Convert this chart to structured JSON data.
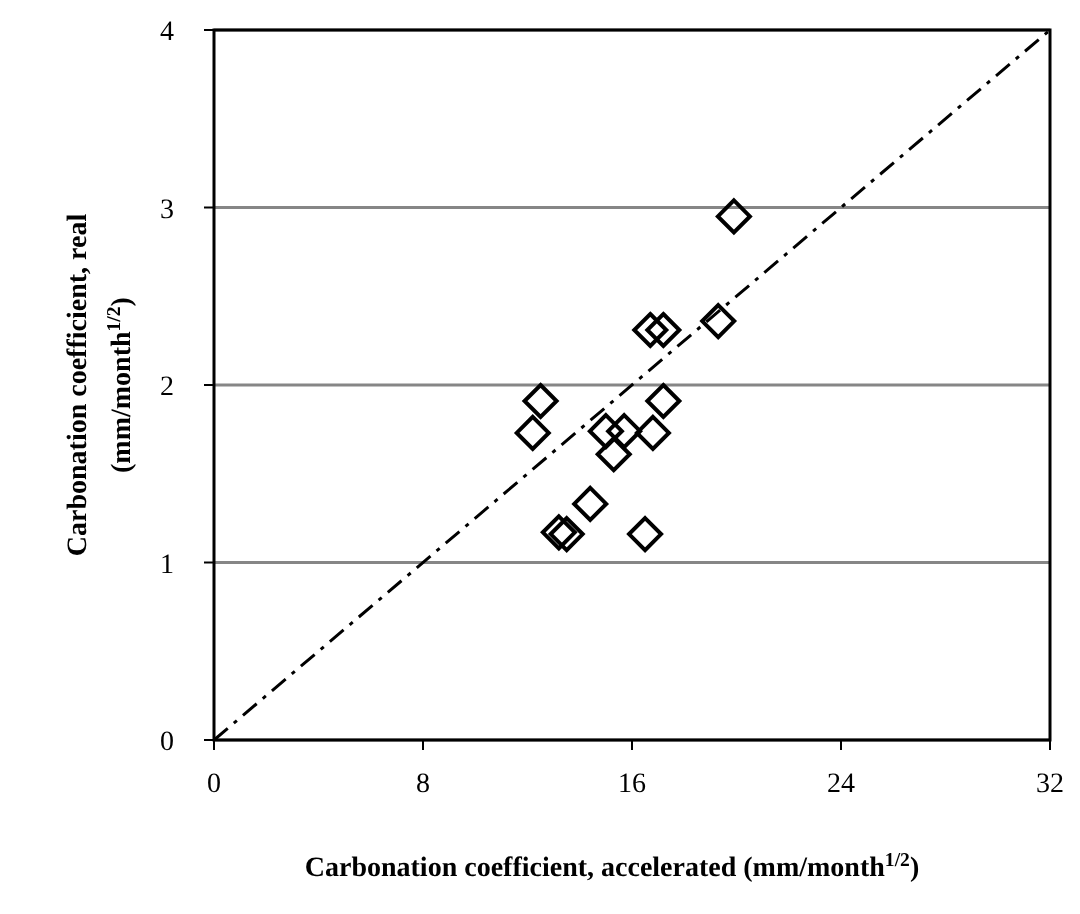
{
  "chart_data": {
    "type": "scatter",
    "xlabel": "Carbonation coefficient, accelerated (mm/month$^{1/2}$)",
    "ylabel": "Carbonation coefficient, real\n(mm/month$^{1/2}$)",
    "xlim": [
      0,
      32
    ],
    "xticks": [
      0,
      8,
      16,
      24,
      32
    ],
    "ylim": [
      0,
      4
    ],
    "yticks": [
      0,
      1,
      2,
      3,
      4
    ],
    "grid": "y",
    "series": [
      {
        "color": "#000000",
        "marker": "diamond",
        "x": [
          12.5,
          12.2,
          16.7,
          17.2,
          19.3,
          17.2,
          15.0,
          15.7,
          16.8,
          15.3,
          14.4,
          13.2,
          13.5,
          16.5,
          19.9
        ],
        "values": [
          1.91,
          1.73,
          2.31,
          2.31,
          2.36,
          1.91,
          1.74,
          1.74,
          1.73,
          1.61,
          1.33,
          1.17,
          1.16,
          1.16,
          2.95
        ]
      },
      {
        "type": "line",
        "color": "#000000",
        "line_style": "dashed",
        "marker": "none",
        "x": [
          0,
          32
        ],
        "values": [
          0,
          4
        ]
      }
    ]
  }
}
